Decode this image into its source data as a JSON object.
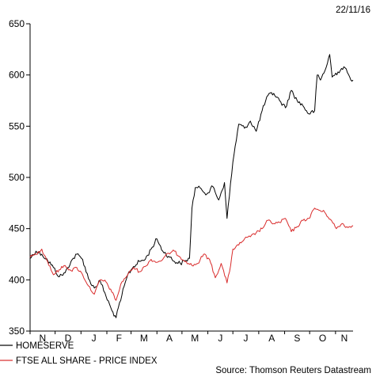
{
  "date_stamp": "22/11/16",
  "source": "Source: Thomson Reuters Datastream",
  "chart_data": {
    "type": "line",
    "title": "",
    "xlabel": "",
    "ylabel": "",
    "ylim": [
      350,
      650
    ],
    "yticks": [
      350,
      400,
      450,
      500,
      550,
      600,
      650
    ],
    "month_labels": [
      "N",
      "D",
      "J",
      "F",
      "M",
      "A",
      "M",
      "J",
      "J",
      "A",
      "S",
      "O",
      "N"
    ],
    "x_range": [
      "2015-11-01",
      "2016-11-22"
    ],
    "legend_position": "bottom-left",
    "series": [
      {
        "name": "HOMESERVE",
        "color": "#000000",
        "points": [
          [
            "2015-11-01",
            421
          ],
          [
            "2015-11-08",
            428
          ],
          [
            "2015-11-15",
            425
          ],
          [
            "2015-11-22",
            419
          ],
          [
            "2015-11-29",
            412
          ],
          [
            "2015-12-06",
            403
          ],
          [
            "2015-12-13",
            407
          ],
          [
            "2015-12-20",
            418
          ],
          [
            "2015-12-27",
            425
          ],
          [
            "2016-01-03",
            420
          ],
          [
            "2016-01-10",
            401
          ],
          [
            "2016-01-17",
            392
          ],
          [
            "2016-01-24",
            399
          ],
          [
            "2016-01-31",
            384
          ],
          [
            "2016-02-07",
            370
          ],
          [
            "2016-02-12",
            363
          ],
          [
            "2016-02-19",
            385
          ],
          [
            "2016-02-26",
            405
          ],
          [
            "2016-03-04",
            413
          ],
          [
            "2016-03-11",
            418
          ],
          [
            "2016-03-18",
            420
          ],
          [
            "2016-03-25",
            430
          ],
          [
            "2016-04-01",
            440
          ],
          [
            "2016-04-08",
            428
          ],
          [
            "2016-04-15",
            423
          ],
          [
            "2016-04-22",
            418
          ],
          [
            "2016-04-29",
            416
          ],
          [
            "2016-05-06",
            419
          ],
          [
            "2016-05-10",
            421
          ],
          [
            "2016-05-13",
            470
          ],
          [
            "2016-05-17",
            490
          ],
          [
            "2016-05-24",
            489
          ],
          [
            "2016-05-31",
            484
          ],
          [
            "2016-06-07",
            491
          ],
          [
            "2016-06-14",
            478
          ],
          [
            "2016-06-21",
            495
          ],
          [
            "2016-06-24",
            460
          ],
          [
            "2016-07-01",
            515
          ],
          [
            "2016-07-08",
            552
          ],
          [
            "2016-07-15",
            548
          ],
          [
            "2016-07-22",
            555
          ],
          [
            "2016-07-29",
            545
          ],
          [
            "2016-08-05",
            565
          ],
          [
            "2016-08-12",
            580
          ],
          [
            "2016-08-19",
            582
          ],
          [
            "2016-08-26",
            575
          ],
          [
            "2016-09-02",
            568
          ],
          [
            "2016-09-09",
            585
          ],
          [
            "2016-09-16",
            575
          ],
          [
            "2016-09-23",
            570
          ],
          [
            "2016-09-30",
            562
          ],
          [
            "2016-10-07",
            565
          ],
          [
            "2016-10-10",
            600
          ],
          [
            "2016-10-14",
            595
          ],
          [
            "2016-10-21",
            608
          ],
          [
            "2016-10-25",
            620
          ],
          [
            "2016-10-28",
            598
          ],
          [
            "2016-11-04",
            603
          ],
          [
            "2016-11-11",
            608
          ],
          [
            "2016-11-18",
            598
          ],
          [
            "2016-11-22",
            595
          ]
        ]
      },
      {
        "name": "FTSE ALL SHARE - PRICE INDEX",
        "color": "#d92b2b",
        "points": [
          [
            "2015-11-01",
            422
          ],
          [
            "2015-11-08",
            425
          ],
          [
            "2015-11-15",
            430
          ],
          [
            "2015-11-22",
            418
          ],
          [
            "2015-11-29",
            405
          ],
          [
            "2015-12-06",
            410
          ],
          [
            "2015-12-13",
            414
          ],
          [
            "2015-12-20",
            409
          ],
          [
            "2015-12-27",
            412
          ],
          [
            "2016-01-03",
            405
          ],
          [
            "2016-01-10",
            394
          ],
          [
            "2016-01-17",
            386
          ],
          [
            "2016-01-24",
            400
          ],
          [
            "2016-01-31",
            398
          ],
          [
            "2016-02-07",
            388
          ],
          [
            "2016-02-12",
            380
          ],
          [
            "2016-02-19",
            398
          ],
          [
            "2016-02-26",
            405
          ],
          [
            "2016-03-04",
            412
          ],
          [
            "2016-03-11",
            408
          ],
          [
            "2016-03-18",
            413
          ],
          [
            "2016-03-25",
            420
          ],
          [
            "2016-04-01",
            417
          ],
          [
            "2016-04-08",
            420
          ],
          [
            "2016-04-15",
            426
          ],
          [
            "2016-04-22",
            428
          ],
          [
            "2016-04-29",
            422
          ],
          [
            "2016-05-06",
            418
          ],
          [
            "2016-05-13",
            414
          ],
          [
            "2016-05-20",
            416
          ],
          [
            "2016-05-27",
            425
          ],
          [
            "2016-06-03",
            420
          ],
          [
            "2016-06-10",
            402
          ],
          [
            "2016-06-17",
            416
          ],
          [
            "2016-06-24",
            397
          ],
          [
            "2016-06-27",
            408
          ],
          [
            "2016-07-01",
            430
          ],
          [
            "2016-07-08",
            434
          ],
          [
            "2016-07-15",
            440
          ],
          [
            "2016-07-22",
            442
          ],
          [
            "2016-07-29",
            446
          ],
          [
            "2016-08-05",
            450
          ],
          [
            "2016-08-12",
            458
          ],
          [
            "2016-08-19",
            455
          ],
          [
            "2016-08-26",
            456
          ],
          [
            "2016-09-02",
            460
          ],
          [
            "2016-09-09",
            447
          ],
          [
            "2016-09-16",
            452
          ],
          [
            "2016-09-23",
            458
          ],
          [
            "2016-09-30",
            460
          ],
          [
            "2016-10-07",
            470
          ],
          [
            "2016-10-12",
            468
          ],
          [
            "2016-10-19",
            466
          ],
          [
            "2016-10-26",
            459
          ],
          [
            "2016-11-02",
            450
          ],
          [
            "2016-11-09",
            455
          ],
          [
            "2016-11-16",
            451
          ],
          [
            "2016-11-22",
            453
          ]
        ]
      }
    ]
  }
}
